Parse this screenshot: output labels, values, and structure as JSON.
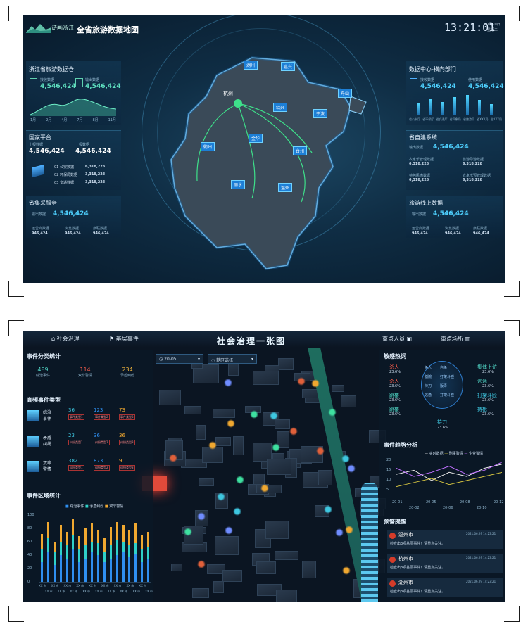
{
  "s1": {
    "logo_text": "诗画浙江",
    "title": "全省旅游数据地图",
    "clock": "13:21:01",
    "date": "10月20日",
    "weekday": "星期二",
    "warehouse": {
      "title": "浙江省旅游数据仓",
      "l1": "接收数据",
      "v1": "4,546,424",
      "l2": "输出数据",
      "v2": "4,546,424",
      "months": [
        "1月",
        "2月",
        "4月",
        "7月",
        "8月",
        "11月"
      ]
    },
    "national": {
      "title": "国家平台",
      "l1": "上报数据",
      "v1": "4,546,424",
      "l2": "上报数据",
      "v2": "4,546,424",
      "rows": [
        {
          "label": "01 公安数据",
          "val": "6,318,228"
        },
        {
          "label": "02 环保局数据",
          "val": "3,318,228"
        },
        {
          "label": "03 交通数据",
          "val": "3,318,228"
        }
      ]
    },
    "collect": {
      "title": "省集采服务",
      "l": "输出数据",
      "v": "4,546,424",
      "c1": "运营商数据",
      "c2": "浏览数据",
      "c3": "旅联数据",
      "cv": "946,424"
    },
    "datacenter": {
      "title": "数据中心-横向部门",
      "l1": "接收数据",
      "v1": "4,546,424",
      "l2": "使用数据",
      "v2": "4,546,424",
      "bars": [
        0.55,
        0.75,
        0.6,
        0.85,
        0.95,
        0.7,
        0.5
      ],
      "xlabels": [
        "省公安厅",
        "省环保厅",
        "省交通厅",
        "省气象局",
        "省旅游局",
        "省XXX局",
        "省XXX局"
      ]
    },
    "provsys": {
      "title": "省自建系统",
      "l": "输出数据",
      "v": "4,546,424",
      "a": "农家乐管理数据",
      "av": "6,318,228",
      "b": "旅游导游数据",
      "bv": "6,318,228",
      "c": "特色民宿数据",
      "cv": "6,318,228",
      "d": "农家乐预管理数据",
      "dv": "6,318,228"
    },
    "online": {
      "title": "旅游线上数据",
      "l": "输出数据",
      "v": "4,546,424",
      "c1": "运营商数据",
      "c2": "浏览数据",
      "c3": "旅联数据",
      "cv": "946,424"
    },
    "cities": [
      "湖州",
      "嘉兴",
      "杭州",
      "绍兴",
      "舟山",
      "宁波",
      "金华",
      "衢州",
      "台州",
      "丽水",
      "温州"
    ]
  },
  "s2": {
    "tab1": "社会治理",
    "tab2": "基层事件",
    "title": "社会治理一张图",
    "tab3": "重点人员",
    "tab4": "重点场所",
    "date_select": "20-05",
    "region_select": "辖区选择",
    "classify": {
      "title": "事件分类统计",
      "items": [
        {
          "n": "489",
          "l": "综治事件"
        },
        {
          "n": "114",
          "l": "双非警情"
        },
        {
          "n": "234",
          "l": "矛盾纠纷"
        }
      ]
    },
    "types": {
      "title": "高频事件类型",
      "rows": [
        {
          "name1": "综治",
          "name2": "事件",
          "v": [
            "36",
            "123",
            "73"
          ],
          "t": [
            "事件类型1",
            "事件类型2",
            "事件类型3"
          ]
        },
        {
          "name1": "矛盾",
          "name2": "纠纷",
          "v": [
            "23",
            "36",
            "36"
          ],
          "t": [
            "纠纷类型1",
            "纠纷类型2",
            "纠纷类型3"
          ]
        },
        {
          "name1": "双非",
          "name2": "警情",
          "v": [
            "382",
            "873",
            "9"
          ],
          "t": [
            "纠纷类型1",
            "纠纷类型2",
            "纠纷类型3"
          ]
        }
      ]
    },
    "area": {
      "title": "事件区域统计",
      "legend": [
        "综治事件",
        "矛盾纠纷",
        "双非警情"
      ],
      "yticks": [
        "100",
        "80",
        "60",
        "40",
        "20",
        "0"
      ],
      "xlabel": "XX 市"
    },
    "sensitive": {
      "title": "敏感热词",
      "left": [
        {
          "w": "杀人",
          "p": "23.6%"
        },
        {
          "w": "杀人",
          "p": "23.6%"
        },
        {
          "w": "跳楼",
          "p": "23.6%"
        },
        {
          "w": "跳楼",
          "p": "23.6%"
        }
      ],
      "right": [
        {
          "w": "集体上访",
          "p": "23.6%"
        },
        {
          "w": "逃逸",
          "p": "23.6%"
        },
        {
          "w": "打架斗殴",
          "p": "23.6%"
        },
        {
          "w": "持枪",
          "p": "23.6%"
        }
      ],
      "center": [
        "杀人",
        "自杀",
        "割腕",
        "打架斗殴",
        "持刀",
        "贩毒",
        "逃逸",
        "打架斗殴"
      ],
      "bottom": {
        "w": "持刀",
        "p": "23.6%"
      }
    },
    "trend": {
      "title": "事件趋势分析",
      "legend": [
        "实时数据",
        "刑事警情",
        "企业警情"
      ],
      "xticks": [
        "20-01",
        "20-02",
        "20-05",
        "20-06",
        "20-08",
        "20-10",
        "20-12"
      ],
      "yticks": [
        "20",
        "15",
        "10",
        "5"
      ]
    },
    "warn": {
      "title": "预警提醒",
      "items": [
        {
          "city": "温州市",
          "time": "2021.06.29 14:23:21",
          "msg": "检查出3项基层事件！请重点关注。"
        },
        {
          "city": "杭州市",
          "time": "2021.06.29 14:23:21",
          "msg": "检查出3项基层事件！请重点关注。"
        },
        {
          "city": "湖州市",
          "time": "2021.06.29 14:23:21",
          "msg": "检查出3项基层事件！请重点关注。"
        }
      ]
    }
  },
  "chart_data": [
    {
      "type": "bar",
      "categories": [
        "省公安厅",
        "省环保厅",
        "省交通厅",
        "省气象局",
        "省旅游局",
        "省XXX局",
        "省XXX局"
      ],
      "values": [
        0.55,
        0.75,
        0.6,
        0.85,
        0.95,
        0.7,
        0.5
      ]
    },
    {
      "type": "bar",
      "categories": [
        "XX 市",
        "XX 市",
        "XX 市",
        "XX 市",
        "XX 市",
        "XX 市",
        "XX 市",
        "XX 市",
        "XX 市",
        "XX 市",
        "XX 市",
        "XX 市",
        "XX 市",
        "XX 市",
        "XX 市",
        "XX 市",
        "XX 市",
        "XX 市"
      ],
      "ylim": [
        0,
        100
      ],
      "series": [
        {
          "name": "综治事件",
          "values": [
            30,
            45,
            25,
            40,
            35,
            50,
            30,
            35,
            45,
            40,
            30,
            35,
            40,
            45,
            38,
            42,
            30,
            35
          ]
        },
        {
          "name": "矛盾纠纷",
          "values": [
            50,
            65,
            45,
            60,
            55,
            70,
            48,
            55,
            60,
            58,
            45,
            55,
            62,
            60,
            55,
            58,
            50,
            52
          ]
        },
        {
          "name": "双非警情",
          "values": [
            72,
            90,
            60,
            85,
            75,
            95,
            68,
            80,
            88,
            78,
            65,
            82,
            90,
            85,
            78,
            88,
            70,
            75
          ]
        }
      ]
    },
    {
      "type": "line",
      "x": [
        "20-01",
        "20-02",
        "20-05",
        "20-06",
        "20-08",
        "20-10",
        "20-12"
      ],
      "ylim": [
        0,
        20
      ],
      "series": [
        {
          "name": "实时数据",
          "values": [
            12,
            14,
            9,
            13,
            11,
            15,
            17
          ]
        },
        {
          "name": "刑事警情",
          "values": [
            6,
            8,
            10,
            7,
            9,
            11,
            13
          ]
        },
        {
          "name": "企业警情",
          "values": [
            15,
            11,
            13,
            16,
            12,
            14,
            18
          ]
        }
      ]
    }
  ]
}
